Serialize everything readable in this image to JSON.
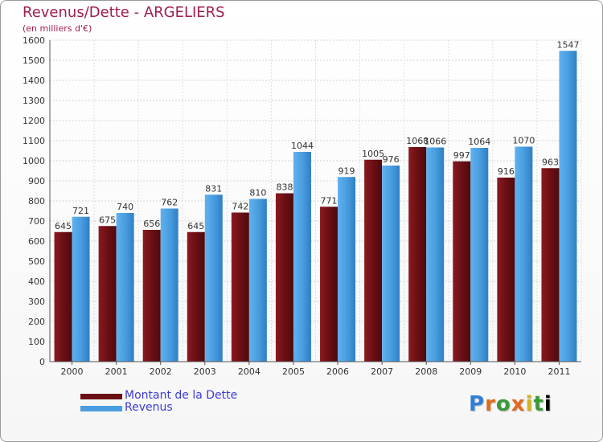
{
  "header": {
    "title": "Revenus/Dette - ARGELIERS",
    "subtitle": "(en milliers d'€)"
  },
  "colors": {
    "dette": "#6b0f14",
    "revenus": "#4a9ee0",
    "title": "#a11d50",
    "legend_text": "#3b3bd6"
  },
  "logo": {
    "text": "Proxiti"
  },
  "chart_data": {
    "type": "bar",
    "title": "Revenus/Dette - ARGELIERS",
    "ylabel": "(en milliers d'€)",
    "xlabel": "",
    "categories": [
      "2000",
      "2001",
      "2002",
      "2003",
      "2004",
      "2005",
      "2006",
      "2007",
      "2008",
      "2009",
      "2010",
      "2011"
    ],
    "series": [
      {
        "name": "Montant de la Dette",
        "values": [
          645,
          675,
          656,
          645,
          742,
          838,
          771,
          1005,
          1068,
          997,
          916,
          963
        ]
      },
      {
        "name": "Revenus",
        "values": [
          721,
          740,
          762,
          831,
          810,
          1044,
          919,
          976,
          1066,
          1064,
          1070,
          1547
        ]
      }
    ],
    "ylim": [
      0,
      1600
    ],
    "yticks": [
      0,
      100,
      200,
      300,
      400,
      500,
      600,
      700,
      800,
      900,
      1000,
      1100,
      1200,
      1300,
      1400,
      1500,
      1600
    ],
    "grid": true,
    "legend_position": "bottom-left"
  }
}
